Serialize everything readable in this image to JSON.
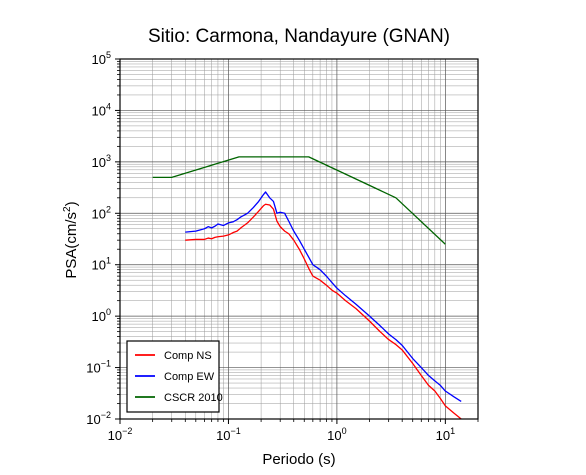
{
  "chart_data": {
    "type": "line",
    "title": "Sitio: Carmona, Nandayure (GNAN)",
    "xlabel": "Periodo (s)",
    "ylabel_main": "PSA(cm/s",
    "ylabel_sup": "2",
    "ylabel_tail": ")",
    "x_scale": "log",
    "y_scale": "log",
    "xlim": [
      0.01,
      20
    ],
    "ylim": [
      0.01,
      100000
    ],
    "grid": true,
    "legend_position": "bottom-left",
    "x_ticks": [
      {
        "value": 0.01,
        "base": "10",
        "exp": "−2"
      },
      {
        "value": 0.1,
        "base": "10",
        "exp": "−1"
      },
      {
        "value": 1,
        "base": "10",
        "exp": "0"
      },
      {
        "value": 10,
        "base": "10",
        "exp": "1"
      }
    ],
    "y_ticks": [
      {
        "value": 0.01,
        "base": "10",
        "exp": "−2"
      },
      {
        "value": 0.1,
        "base": "10",
        "exp": "−1"
      },
      {
        "value": 1,
        "base": "10",
        "exp": "0"
      },
      {
        "value": 10,
        "base": "10",
        "exp": "1"
      },
      {
        "value": 100,
        "base": "10",
        "exp": "2"
      },
      {
        "value": 1000,
        "base": "10",
        "exp": "3"
      },
      {
        "value": 10000,
        "base": "10",
        "exp": "4"
      },
      {
        "value": 100000,
        "base": "10",
        "exp": "5"
      }
    ],
    "series": [
      {
        "name": "Comp NS",
        "color": "#ff0000",
        "x": [
          0.04,
          0.05,
          0.06,
          0.065,
          0.07,
          0.075,
          0.08,
          0.09,
          0.1,
          0.11,
          0.12,
          0.13,
          0.15,
          0.17,
          0.19,
          0.21,
          0.22,
          0.24,
          0.26,
          0.28,
          0.3,
          0.33,
          0.36,
          0.4,
          0.45,
          0.5,
          0.55,
          0.6,
          0.7,
          0.8,
          0.9,
          1.0,
          1.2,
          1.5,
          2.0,
          2.5,
          3.0,
          3.5,
          4.0,
          5.0,
          6.0,
          7.0,
          8.0,
          9.0,
          10.0,
          12.0,
          14.0
        ],
        "values": [
          30,
          31,
          31,
          33,
          32,
          34,
          35,
          36,
          38,
          42,
          45,
          52,
          65,
          85,
          110,
          140,
          150,
          145,
          120,
          70,
          55,
          45,
          40,
          30,
          20,
          13,
          8.5,
          6,
          5,
          4,
          3.2,
          2.8,
          2,
          1.4,
          0.8,
          0.5,
          0.35,
          0.28,
          0.22,
          0.12,
          0.07,
          0.045,
          0.035,
          0.025,
          0.018,
          0.013,
          0.01
        ]
      },
      {
        "name": "Comp EW",
        "color": "#0000ff",
        "x": [
          0.04,
          0.05,
          0.06,
          0.065,
          0.07,
          0.075,
          0.08,
          0.09,
          0.1,
          0.11,
          0.12,
          0.13,
          0.15,
          0.17,
          0.19,
          0.21,
          0.22,
          0.24,
          0.26,
          0.28,
          0.3,
          0.33,
          0.36,
          0.4,
          0.45,
          0.5,
          0.55,
          0.6,
          0.7,
          0.8,
          0.9,
          1.0,
          1.2,
          1.5,
          2.0,
          2.5,
          3.0,
          3.5,
          4.0,
          5.0,
          6.0,
          7.0,
          8.0,
          9.0,
          10.0,
          12.0,
          14.0
        ],
        "values": [
          43,
          45,
          50,
          55,
          52,
          56,
          62,
          58,
          65,
          68,
          75,
          85,
          100,
          130,
          170,
          230,
          260,
          200,
          170,
          100,
          105,
          100,
          70,
          45,
          30,
          20,
          14,
          10,
          8,
          6,
          4.5,
          3.5,
          2.5,
          1.7,
          1.0,
          0.65,
          0.45,
          0.35,
          0.27,
          0.15,
          0.1,
          0.07,
          0.055,
          0.045,
          0.035,
          0.027,
          0.022
        ]
      },
      {
        "name": "CSCR 2010",
        "color": "#006400",
        "x": [
          0.02,
          0.03,
          0.125,
          0.55,
          3.5,
          10.0
        ],
        "values": [
          500,
          500,
          1250,
          1250,
          200,
          25
        ]
      }
    ]
  }
}
